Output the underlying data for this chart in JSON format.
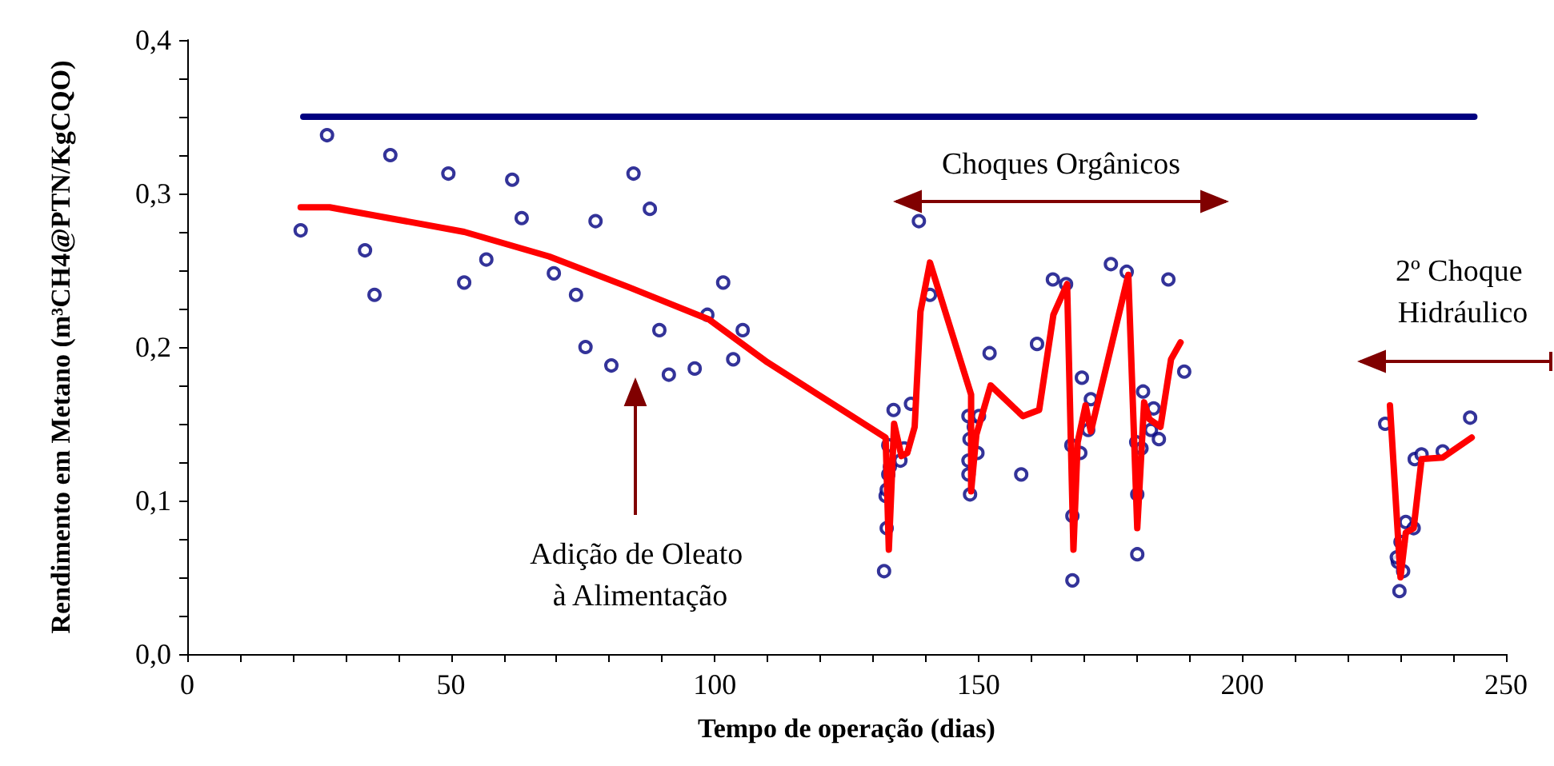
{
  "chart_data": {
    "type": "scatter",
    "xlabel": "Tempo de operação (dias)",
    "ylabel": "Rendimento em Metano (m³CH4@PTN/KgCQO)",
    "xlim": [
      0,
      250
    ],
    "xticks": [
      0,
      {
        "value": 10,
        "label": null
      },
      {
        "value": 20,
        "label": null
      },
      {
        "value": 30,
        "label": null
      },
      {
        "value": 40,
        "label": null
      },
      50,
      {
        "value": 60,
        "label": null
      },
      {
        "value": 70,
        "label": null
      },
      {
        "value": 80,
        "label": null
      },
      {
        "value": 90,
        "label": null
      },
      100,
      {
        "value": 110,
        "label": null
      },
      {
        "value": 120,
        "label": null
      },
      {
        "value": 130,
        "label": null
      },
      {
        "value": 140,
        "label": null
      },
      150,
      {
        "value": 160,
        "label": null
      },
      {
        "value": 170,
        "label": null
      },
      {
        "value": 180,
        "label": null
      },
      {
        "value": 190,
        "label": null
      },
      200,
      {
        "value": 210,
        "label": null
      },
      {
        "value": 220,
        "label": null
      },
      {
        "value": 230,
        "label": null
      },
      {
        "value": 240,
        "label": null
      },
      250
    ],
    "ylim": [
      0,
      0.4
    ],
    "yticks": [
      {
        "value": 0,
        "label": "0,0"
      },
      {
        "value": 0.025,
        "label": null
      },
      {
        "value": 0.05,
        "label": null
      },
      {
        "value": 0.075,
        "label": null
      },
      {
        "value": 0.1,
        "label": "0,1"
      },
      {
        "value": 0.125,
        "label": null
      },
      {
        "value": 0.15,
        "label": null
      },
      {
        "value": 0.175,
        "label": null
      },
      {
        "value": 0.2,
        "label": "0,2"
      },
      {
        "value": 0.225,
        "label": null
      },
      {
        "value": 0.25,
        "label": null
      },
      {
        "value": 0.275,
        "label": null
      },
      {
        "value": 0.3,
        "label": "0,3"
      },
      {
        "value": 0.325,
        "label": null
      },
      {
        "value": 0.35,
        "label": null
      },
      {
        "value": 0.375,
        "label": null
      },
      {
        "value": 0.4,
        "label": "0,4"
      }
    ],
    "grid": false,
    "series": [
      {
        "type": "line",
        "color": "#000080",
        "marker": "none",
        "line_style": "solid",
        "x": [
          22,
          244
        ],
        "values": [
          0.35,
          0.35
        ]
      },
      {
        "color": "#000080",
        "marker": "circle",
        "x": [
          21.5,
          26.5,
          38.5,
          33.7,
          35.5,
          49.5,
          52.5,
          56.7,
          61.6,
          63.4,
          69.5,
          73.7,
          75.5,
          77.4,
          80.4,
          84.6,
          87.7,
          89.5,
          91.3,
          96.2,
          98.6,
          101.6,
          103.5,
          105.3,
          132.1,
          132.6,
          132.4,
          132.6,
          132.9,
          133.2,
          132.9,
          133.9,
          135.2,
          135.9,
          137.2,
          140.8,
          138.7,
          148.1,
          148.3,
          148.1,
          148.1,
          148.4,
          149.1,
          150.1,
          149.8,
          152.1,
          158.1,
          161.1,
          164.1,
          166.6,
          167.8,
          167.8,
          167.6,
          169.3,
          169.6,
          171.3,
          170.8,
          175.1,
          178.1,
          179.9,
          180.1,
          180.1,
          180.9,
          181.2,
          183.2,
          182.7,
          184.2,
          186,
          189,
          227.1,
          229.8,
          229.5,
          229.3,
          230.5,
          230,
          231,
          232.5,
          232.7,
          234,
          238,
          243.2
        ],
        "values": [
          0.276,
          0.338,
          0.325,
          0.263,
          0.234,
          0.313,
          0.242,
          0.257,
          0.309,
          0.284,
          0.248,
          0.234,
          0.2,
          0.282,
          0.188,
          0.313,
          0.29,
          0.211,
          0.182,
          0.186,
          0.221,
          0.242,
          0.192,
          0.211,
          0.054,
          0.082,
          0.103,
          0.107,
          0.117,
          0.122,
          0.136,
          0.159,
          0.126,
          0.134,
          0.163,
          0.234,
          0.282,
          0.155,
          0.14,
          0.126,
          0.117,
          0.104,
          0.148,
          0.155,
          0.131,
          0.196,
          0.117,
          0.202,
          0.244,
          0.241,
          0.09,
          0.048,
          0.136,
          0.131,
          0.18,
          0.166,
          0.146,
          0.254,
          0.249,
          0.138,
          0.104,
          0.065,
          0.134,
          0.171,
          0.16,
          0.146,
          0.14,
          0.244,
          0.184,
          0.15,
          0.041,
          0.06,
          0.063,
          0.054,
          0.073,
          0.086,
          0.082,
          0.127,
          0.13,
          0.132,
          0.154
        ]
      },
      {
        "type": "line",
        "color": "#ff0000",
        "marker": "none",
        "line_style": "solid",
        "x": [
          21.5,
          27,
          38.2,
          52.5,
          68.6,
          83.7,
          98.9,
          110,
          132.4,
          133,
          134,
          135.4,
          136.5,
          137.9,
          139,
          140.8,
          148.6,
          148.6,
          149.6,
          152.3,
          158.4,
          161.5,
          164.2,
          166.8,
          168,
          168.8,
          170.3,
          171.3,
          178.4,
          180.1,
          181.4,
          182.4,
          184.5,
          186.5,
          188.3,
          208,
          228,
          230,
          231,
          232.5,
          234,
          238,
          243.5
        ],
        "values": [
          0.291,
          0.291,
          0.284,
          0.275,
          0.259,
          0.239,
          0.218,
          0.19,
          0.141,
          0.068,
          0.15,
          0.129,
          0.131,
          0.148,
          0.223,
          0.255,
          0.169,
          0.106,
          0.143,
          0.175,
          0.155,
          0.159,
          0.221,
          0.241,
          0.068,
          0.138,
          0.162,
          0.145,
          0.247,
          0.082,
          0.164,
          0.153,
          0.148,
          0.192,
          0.203,
          null,
          0.162,
          0.05,
          0.079,
          0.082,
          0.127,
          0.128,
          0.141
        ]
      }
    ],
    "annotations": [
      "Choques Orgânicos",
      "2º Choque Hidráulico",
      "Adição de Oleato à Alimentação"
    ]
  }
}
